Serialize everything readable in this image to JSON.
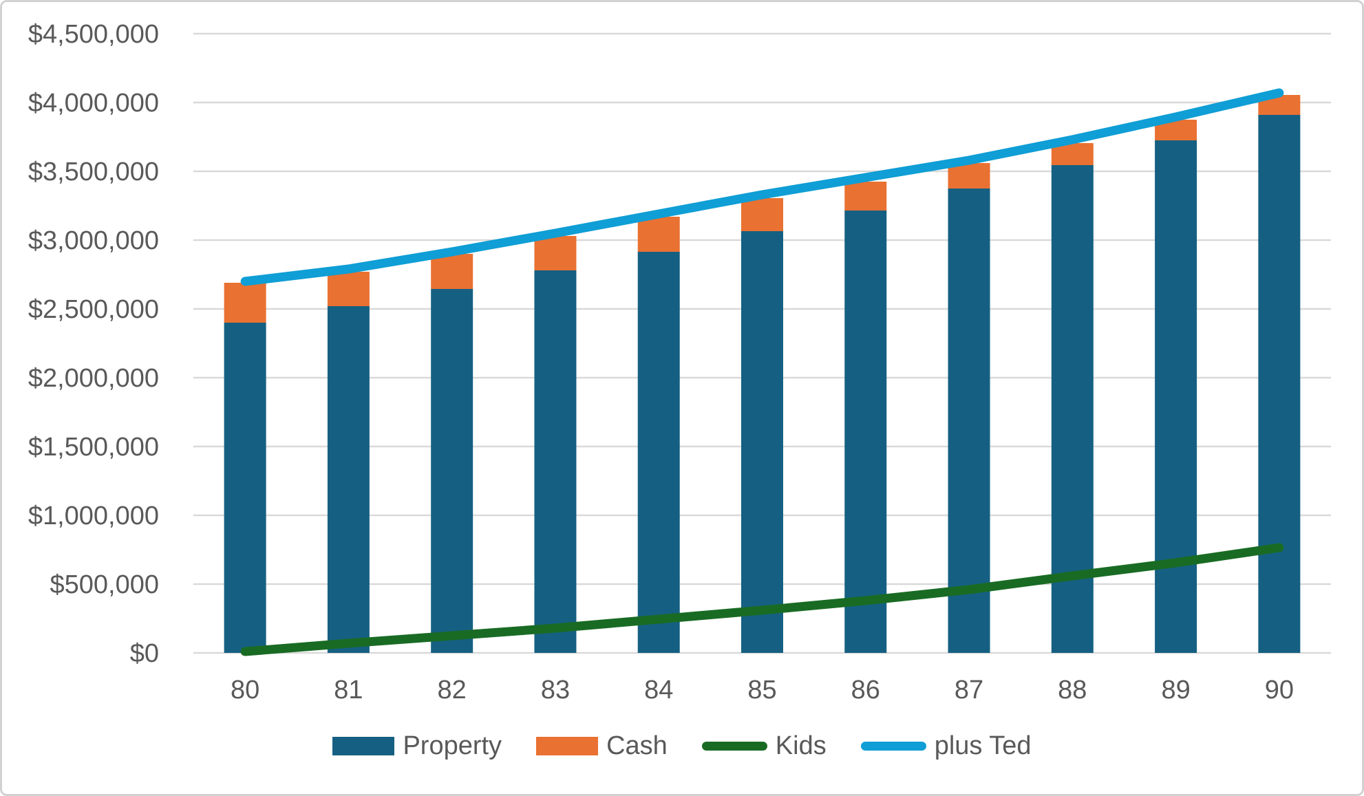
{
  "chart_data": {
    "type": "combo",
    "title": "",
    "xlabel": "",
    "ylabel": "",
    "categories": [
      "80",
      "81",
      "82",
      "83",
      "84",
      "85",
      "86",
      "87",
      "88",
      "89",
      "90"
    ],
    "series": [
      {
        "name": "Property",
        "type": "bar",
        "stack": "wealth",
        "color": "#156082",
        "values": [
          2400000,
          2520000,
          2645000,
          2780000,
          2915000,
          3065000,
          3215000,
          3375000,
          3545000,
          3725000,
          3910000
        ]
      },
      {
        "name": "Cash",
        "type": "bar",
        "stack": "wealth",
        "color": "#E97132",
        "values": [
          290000,
          250000,
          255000,
          250000,
          255000,
          240000,
          210000,
          185000,
          160000,
          150000,
          145000
        ]
      },
      {
        "name": "Kids",
        "type": "line",
        "color": "#196B24",
        "values": [
          10000,
          70000,
          125000,
          180000,
          245000,
          310000,
          380000,
          460000,
          560000,
          655000,
          765000
        ]
      },
      {
        "name": "plus Ted",
        "type": "line",
        "color": "#0F9ED5",
        "values": [
          2700000,
          2790000,
          2915000,
          3050000,
          3190000,
          3330000,
          3455000,
          3580000,
          3730000,
          3895000,
          4070000
        ]
      }
    ],
    "ylim": [
      0,
      4500000
    ],
    "ytick_step": 500000,
    "ytick_labels": [
      "$0",
      "$500,000",
      "$1,000,000",
      "$1,500,000",
      "$2,000,000",
      "$2,500,000",
      "$3,000,000",
      "$3,500,000",
      "$4,000,000",
      "$4,500,000"
    ],
    "grid": true,
    "gridline_color": "#D9D9D9",
    "axis_label_color": "#595959",
    "legend_position": "bottom"
  }
}
